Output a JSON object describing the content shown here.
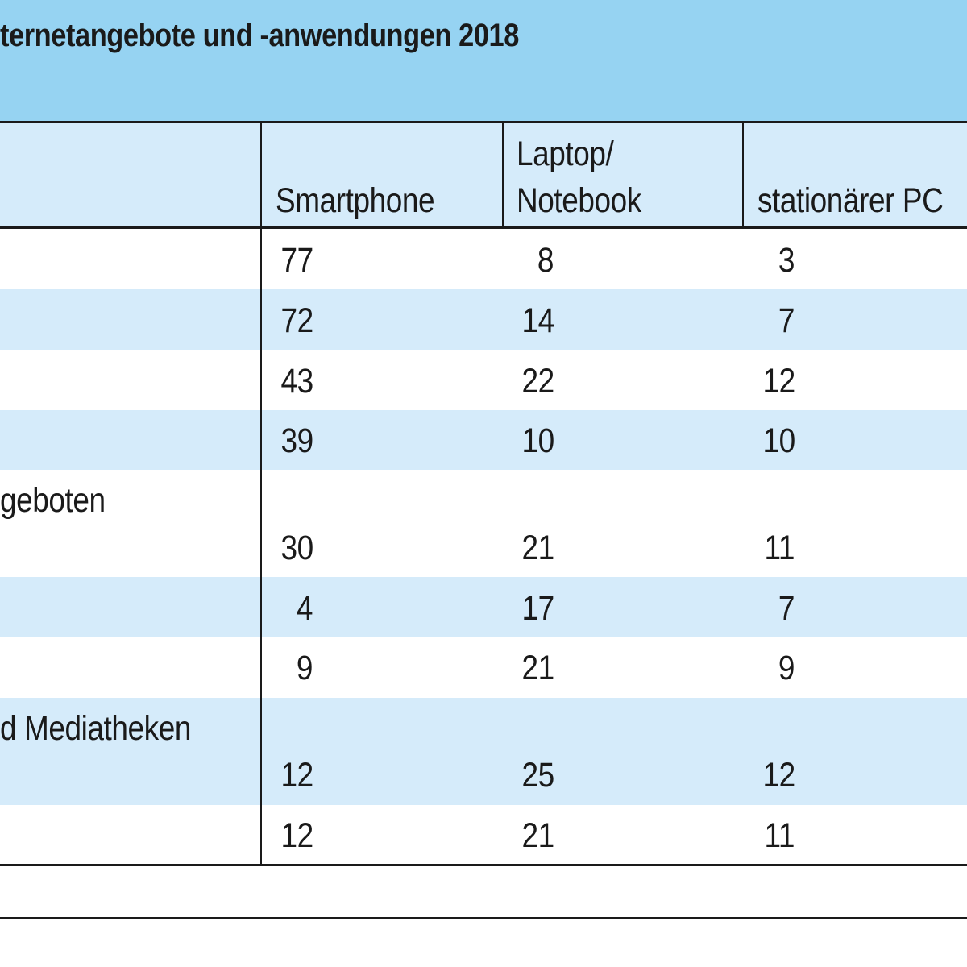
{
  "title": "ternetangebote und -anwendungen 2018",
  "chart_data": {
    "type": "table",
    "title": "ternetangebote und -anwendungen 2018",
    "columns": [
      "Smartphone",
      "Laptop/ Notebook",
      "stationärer PC"
    ],
    "column_lines": {
      "smartphone": [
        "Smartphone"
      ],
      "laptop": [
        "Laptop/",
        "Notebook"
      ],
      "pc": [
        "stationärer PC"
      ]
    },
    "rows": [
      {
        "label": "",
        "values": [
          77,
          8,
          3
        ]
      },
      {
        "label": "",
        "values": [
          72,
          14,
          7
        ]
      },
      {
        "label": "",
        "values": [
          43,
          22,
          12
        ]
      },
      {
        "label": "",
        "values": [
          39,
          10,
          10
        ]
      },
      {
        "label": "geboten",
        "values": [
          30,
          21,
          11
        ]
      },
      {
        "label": "",
        "values": [
          4,
          17,
          7
        ]
      },
      {
        "label": "",
        "values": [
          9,
          21,
          9
        ]
      },
      {
        "label": "d Mediatheken",
        "values": [
          12,
          25,
          12
        ]
      },
      {
        "label": "",
        "values": [
          12,
          21,
          11
        ]
      }
    ]
  }
}
